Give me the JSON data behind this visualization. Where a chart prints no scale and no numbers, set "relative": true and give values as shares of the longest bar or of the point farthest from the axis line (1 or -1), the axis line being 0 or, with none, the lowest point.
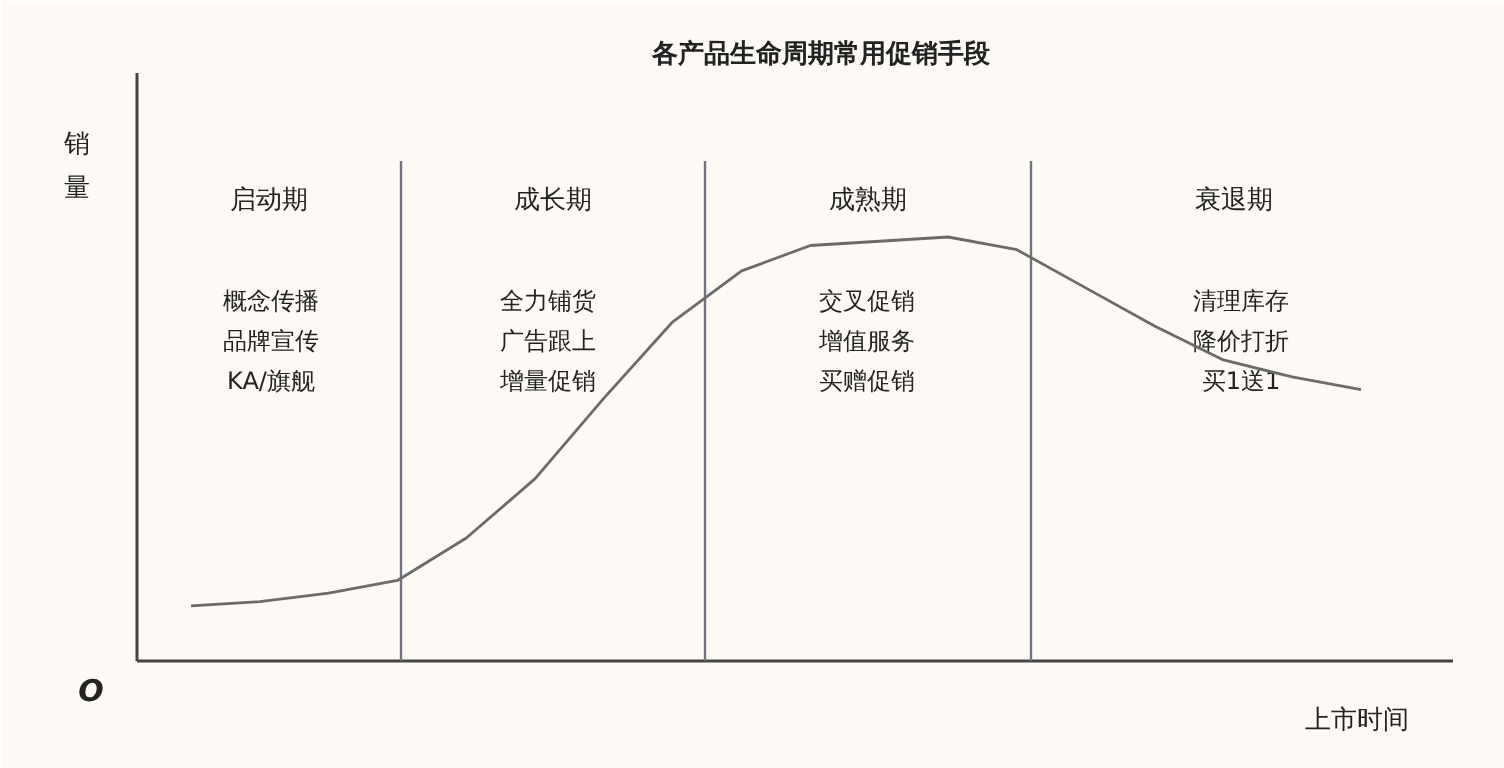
{
  "chart_data": {
    "type": "line",
    "title": "各产品生命周期常用促销手段",
    "xlabel": "上市时间",
    "ylabel": "销量",
    "relative": true,
    "categories": [
      null,
      null,
      null,
      null,
      null,
      null,
      null,
      null,
      null,
      null,
      null,
      null,
      null,
      null,
      null,
      null,
      null,
      null
    ],
    "series": [
      {
        "color": "#6b6b6b",
        "values": [
          0.13,
          0.14,
          0.16,
          0.19,
          0.29,
          0.43,
          0.62,
          0.8,
          0.92,
          0.98,
          0.99,
          1.0,
          0.97,
          0.88,
          0.79,
          0.71,
          0.67,
          0.64
        ]
      }
    ],
    "annotations": [
      "启动期",
      "概念传播",
      "品牌宣传",
      "KA/旗舰",
      "成长期",
      "全力铺货",
      "广告跟上",
      "增量促销",
      "成熟期",
      "交叉促销",
      "增值服务",
      "买赠促销",
      "衰退期",
      "清理库存",
      "降价打折",
      "买1送1",
      "O"
    ],
    "grid": false
  }
}
